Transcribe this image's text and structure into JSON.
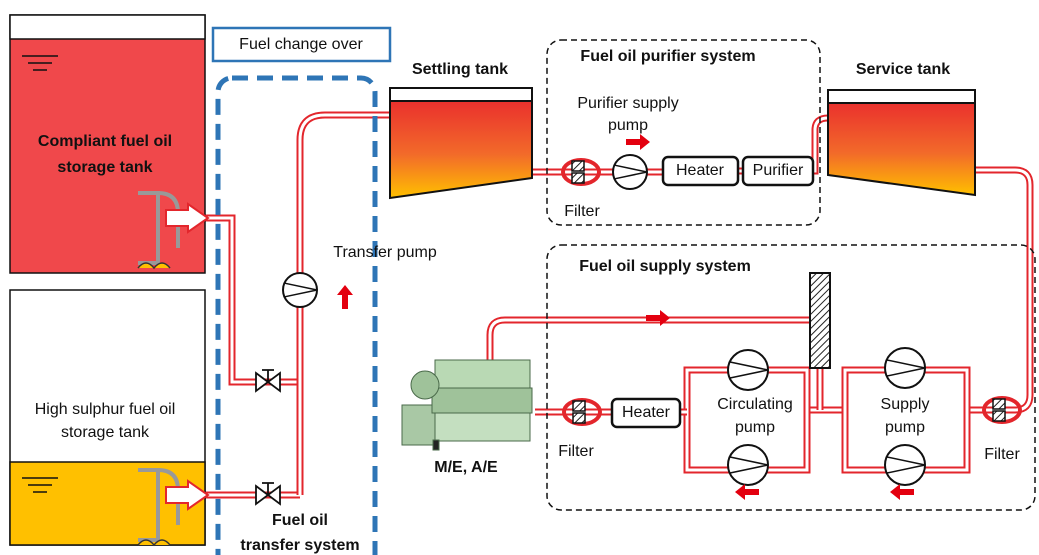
{
  "tanks": {
    "compliant": {
      "lines": [
        "Compliant fuel oil",
        "storage tank"
      ]
    },
    "high_sulphur": {
      "lines": [
        "High sulphur fuel oil",
        "storage tank"
      ]
    },
    "settling": {
      "label": "Settling tank"
    },
    "service": {
      "label": "Service tank"
    }
  },
  "fuel_change_over": "Fuel change over",
  "transfer_system": {
    "lines": [
      "Fuel oil",
      "transfer system"
    ],
    "pump": "Transfer pump"
  },
  "purifier_system": {
    "title": "Fuel oil purifier system",
    "pump_lines": [
      "Purifier supply",
      "pump"
    ],
    "filter": "Filter",
    "heater": "Heater",
    "purifier": "Purifier"
  },
  "supply_system": {
    "title": "Fuel oil supply system",
    "engine": "M/E, A/E",
    "filter_left": "Filter",
    "heater": "Heater",
    "circulating_pump_lines": [
      "Circulating",
      "pump"
    ],
    "supply_pump_lines": [
      "Supply",
      "pump"
    ],
    "filter_right": "Filter"
  }
}
